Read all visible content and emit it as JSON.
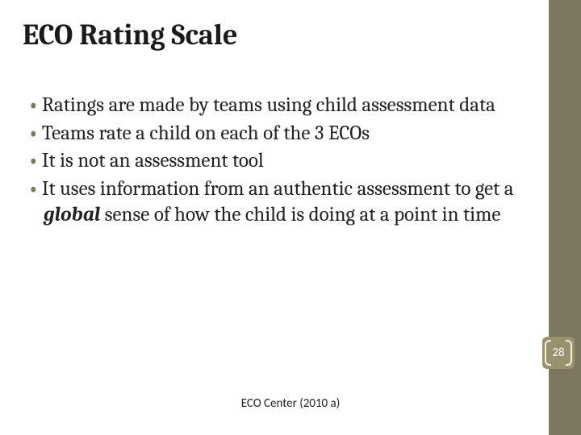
{
  "title": "ECO Rating Scale",
  "bullets": {
    "0": "Ratings are made by teams using child assessment data",
    "1": "Teams rate a child on each of the 3 ECOs",
    "2": "It is not an assessment tool",
    "3": {
      "pre": "It uses information from an authentic assessment to get a ",
      "em": "global",
      "post": " sense of how the child is doing at a point in time"
    }
  },
  "footer_citation": "ECO Center (2010 a)",
  "page_number": "28",
  "style": {
    "bullet_char": "• ",
    "bullet_color": "#7d7760",
    "strip_color": "#7d7760",
    "badge_bg": "#9a916f",
    "badge_fg": "#ffffff",
    "title_fontsize_pt": 28,
    "body_fontsize_pt": 19,
    "footer_fontsize_pt": 11,
    "background": "#ffffff",
    "text_color": "#000000",
    "font_family_title": "Cambria",
    "font_family_body": "Cambria",
    "font_family_footer": "Calibri"
  }
}
